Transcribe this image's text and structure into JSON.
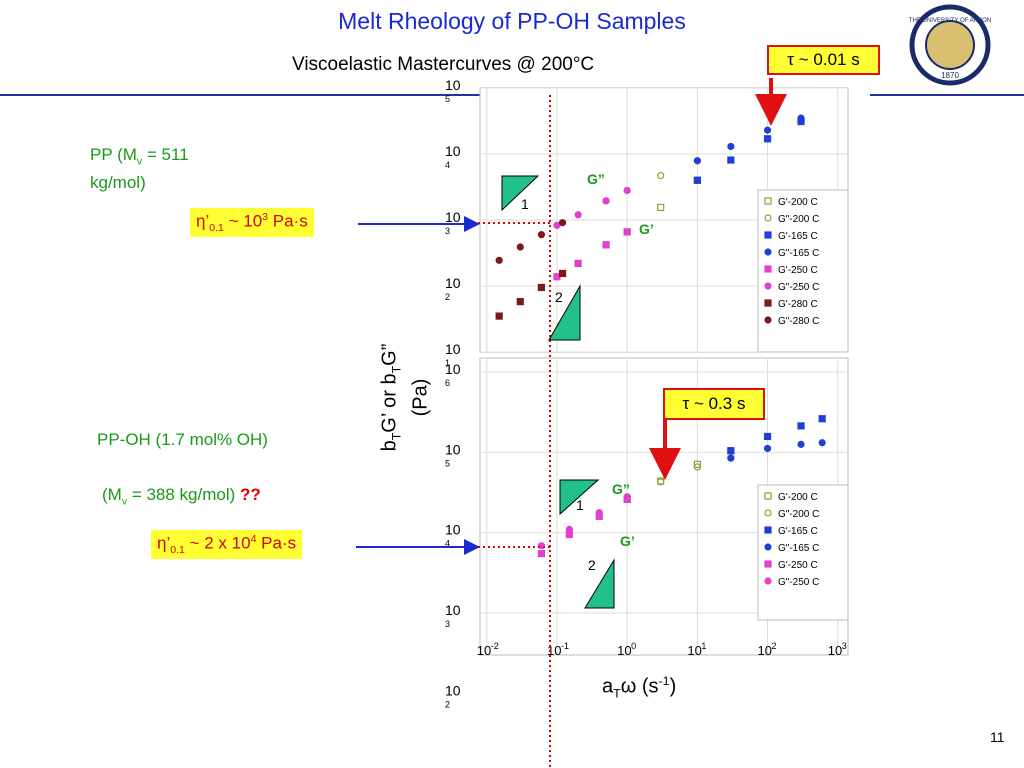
{
  "slide": {
    "title": "Melt Rheology of PP-OH Samples",
    "subtitle": "Viscoelastic Mastercurves @ 200°C",
    "page_number": "11",
    "logo_text": "THE UNIVERSITY OF AKRON",
    "logo_year": "1870",
    "pp_label": [
      "PP (M",
      "v",
      " = 511 kg/mol)"
    ],
    "pp_viscosity": [
      "η’",
      "0.1",
      " ~ 10",
      "3",
      " Pa·s"
    ],
    "ppoh_label": "PP-OH (1.7 mol% OH)",
    "ppoh_mw": [
      "(M",
      "v",
      " = 388 kg/mol) ",
      "??"
    ],
    "ppoh_viscosity": [
      "η’",
      "0.1",
      " ~ 2 x 10",
      "4",
      " Pa·s"
    ],
    "tau_top": "τ ~ 0.01 s",
    "tau_bottom": "τ ~ 0.3 s",
    "y_label": [
      "b",
      "T",
      "G’ or b",
      "T",
      "G”"
    ],
    "y_unit": "(Pa)",
    "x_label": [
      "a",
      "T",
      "ω  (s",
      "-1",
      ")"
    ],
    "slope_labels": [
      "1",
      "2",
      "1",
      "2"
    ],
    "curve_labels": [
      "G”",
      "G’",
      "G”",
      "G’"
    ]
  },
  "chart_data": [
    {
      "type": "scatter",
      "log_x": true,
      "log_y": true,
      "grid": true,
      "xlim": [
        0.008,
        1400
      ],
      "ylim": [
        10,
        100000
      ],
      "yticks": [
        {
          "value": 10,
          "label": "10",
          "exponent": "1"
        },
        {
          "value": 100,
          "label": "10",
          "exponent": "2"
        },
        {
          "value": 1000,
          "label": "10",
          "exponent": "3"
        },
        {
          "value": 10000,
          "label": "10",
          "exponent": "4"
        },
        {
          "value": 100000,
          "label": "10",
          "exponent": "5"
        }
      ],
      "series": [
        {
          "name": "G'-200 C",
          "color": "#999933",
          "marker": "square",
          "filled": false,
          "x": [
            0.5,
            1,
            3,
            10
          ],
          "values": [
            420,
            660,
            1550,
            4000
          ]
        },
        {
          "name": "G\"-200 C",
          "color": "#999933",
          "marker": "circle",
          "filled": false,
          "x": [
            0.5,
            1,
            3,
            10
          ],
          "values": [
            1950,
            2800,
            4700,
            7900
          ]
        },
        {
          "name": "G'-165 C",
          "color": "#1f3fd6",
          "marker": "square",
          "filled": true,
          "x": [
            10,
            30,
            100,
            300
          ],
          "values": [
            4000,
            8100,
            17000,
            31000
          ]
        },
        {
          "name": "G\"-165 C",
          "color": "#1f3fd6",
          "marker": "circle",
          "filled": true,
          "x": [
            10,
            30,
            100,
            300
          ],
          "values": [
            7900,
            13000,
            23000,
            35000
          ]
        },
        {
          "name": "G'-250 C",
          "color": "#e040d0",
          "marker": "square",
          "filled": true,
          "x": [
            0.1,
            0.2,
            0.5,
            1
          ],
          "values": [
            138,
            220,
            420,
            660
          ]
        },
        {
          "name": "G\"-250 C",
          "color": "#e040d0",
          "marker": "circle",
          "filled": true,
          "x": [
            0.1,
            0.2,
            0.5,
            1
          ],
          "values": [
            830,
            1200,
            1950,
            2800
          ]
        },
        {
          "name": "G'-280 C",
          "color": "#7a1a1a",
          "marker": "square",
          "filled": true,
          "x": [
            0.015,
            0.03,
            0.06,
            0.12
          ],
          "values": [
            35,
            58,
            95,
            155
          ]
        },
        {
          "name": "G\"-280 C",
          "color": "#7a1a1a",
          "marker": "circle",
          "filled": true,
          "x": [
            0.015,
            0.03,
            0.06,
            0.12
          ],
          "values": [
            245,
            390,
            600,
            910
          ]
        }
      ]
    },
    {
      "type": "scatter",
      "log_x": true,
      "log_y": true,
      "grid": true,
      "xlim": [
        0.008,
        1400
      ],
      "ylim": [
        300,
        1500000
      ],
      "xticks": [
        {
          "value": 0.01,
          "label": "10",
          "exponent": "-2"
        },
        {
          "value": 0.1,
          "label": "10",
          "exponent": "-1"
        },
        {
          "value": 1,
          "label": "10",
          "exponent": "0"
        },
        {
          "value": 10,
          "label": "10",
          "exponent": "1"
        },
        {
          "value": 100,
          "label": "10",
          "exponent": "2"
        },
        {
          "value": 1000,
          "label": "10",
          "exponent": "3"
        }
      ],
      "yticks": [
        {
          "value": 100,
          "label": "10",
          "exponent": "2"
        },
        {
          "value": 1000,
          "label": "10",
          "exponent": "3"
        },
        {
          "value": 10000,
          "label": "10",
          "exponent": "4"
        },
        {
          "value": 100000,
          "label": "10",
          "exponent": "5"
        },
        {
          "value": 1000000,
          "label": "10",
          "exponent": "6"
        }
      ],
      "series": [
        {
          "name": "G'-200 C",
          "color": "#999933",
          "marker": "square",
          "filled": false,
          "x": [
            1,
            3,
            10,
            30
          ],
          "values": [
            26000,
            44000,
            71000,
            105000
          ]
        },
        {
          "name": "G\"-200 C",
          "color": "#999933",
          "marker": "circle",
          "filled": false,
          "x": [
            1,
            3,
            10,
            30
          ],
          "values": [
            28000,
            43000,
            66000,
            85000
          ]
        },
        {
          "name": "G'-165 C",
          "color": "#1f3fd6",
          "marker": "square",
          "filled": true,
          "x": [
            30,
            100,
            300,
            600
          ],
          "values": [
            105000,
            158000,
            214000,
            263000
          ]
        },
        {
          "name": "G\"-165 C",
          "color": "#1f3fd6",
          "marker": "circle",
          "filled": true,
          "x": [
            30,
            100,
            300,
            600
          ],
          "values": [
            85000,
            112000,
            126000,
            132000
          ]
        },
        {
          "name": "G'-250 C",
          "color": "#e040d0",
          "marker": "square",
          "filled": true,
          "x": [
            0.06,
            0.15,
            0.4,
            1
          ],
          "values": [
            5500,
            9500,
            16000,
            26000
          ]
        },
        {
          "name": "G\"-250 C",
          "color": "#e040d0",
          "marker": "circle",
          "filled": true,
          "x": [
            0.06,
            0.15,
            0.4,
            1
          ],
          "values": [
            6900,
            11000,
            17800,
            28000
          ]
        }
      ]
    }
  ]
}
